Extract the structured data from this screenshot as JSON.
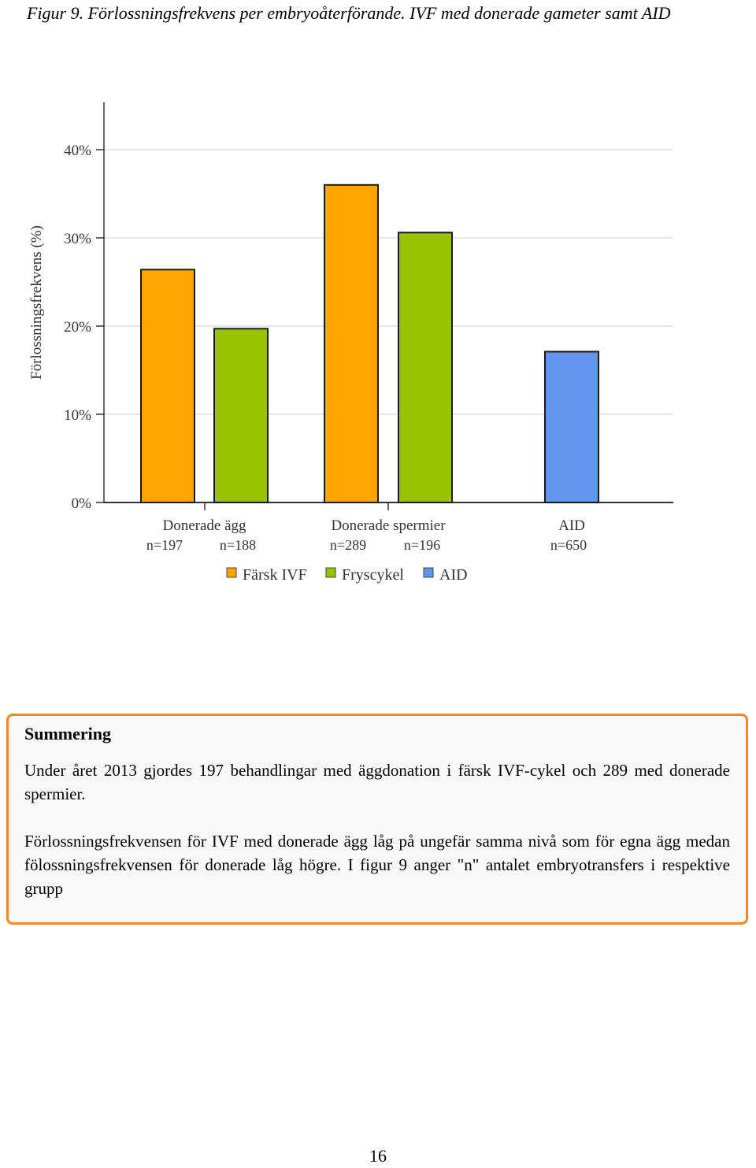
{
  "caption": "Figur 9. Förlossningsfrekvens per embryoåterförande. IVF med donerade gameter samt AID",
  "chart_data": {
    "type": "bar",
    "ylabel": "Förlossningsfrekvens (%)",
    "ylim": [
      0,
      40
    ],
    "yticks": [
      0,
      10,
      20,
      30,
      40
    ],
    "ytick_labels": [
      "0%",
      "10%",
      "20%",
      "30%",
      "40%"
    ],
    "grid": true,
    "groups": [
      {
        "label": "Donerade ägg",
        "bars": [
          {
            "series": "Färsk IVF",
            "value": 26.4,
            "n": "n=197"
          },
          {
            "series": "Fryscykel",
            "value": 19.7,
            "n": "n=188"
          }
        ]
      },
      {
        "label": "Donerade spermier",
        "bars": [
          {
            "series": "Färsk IVF",
            "value": 36.0,
            "n": "n=289"
          },
          {
            "series": "Fryscykel",
            "value": 30.6,
            "n": "n=196"
          }
        ]
      },
      {
        "label": "AID",
        "bars": [
          {
            "series": "AID",
            "value": 17.1,
            "n": "n=650"
          }
        ]
      }
    ],
    "legend": [
      {
        "name": "Färsk IVF",
        "color": "#ffa500"
      },
      {
        "name": "Fryscykel",
        "color": "#99c200"
      },
      {
        "name": "AID",
        "color": "#6495ed"
      }
    ],
    "legend_position": "bottom"
  },
  "summary": {
    "title": "Summering",
    "paragraph1": "Under året 2013 gjordes 197 behandlingar med äggdonation i färsk IVF-cykel och 289 med donerade spermier.",
    "paragraph2": "Förlossningsfrekvensen för IVF med donerade ägg låg på ungefär samma nivå som för egna ägg medan fölossningsfrekvensen för donerade låg högre. I figur 9 anger \"n\" antalet embryotransfers i respektive grupp"
  },
  "page_number": "16"
}
